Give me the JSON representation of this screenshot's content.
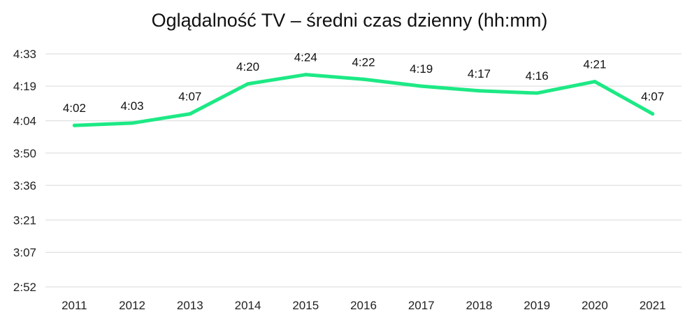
{
  "chart_data": {
    "type": "line",
    "title": "Oglądalność TV – średni czas dzienny (hh:mm)",
    "xlabel": "",
    "ylabel": "",
    "categories": [
      "2011",
      "2012",
      "2013",
      "2014",
      "2015",
      "2016",
      "2017",
      "2018",
      "2019",
      "2020",
      "2021"
    ],
    "series": [
      {
        "values_minutes": [
          242,
          243,
          247,
          260,
          264,
          262,
          259,
          257,
          256,
          261,
          247
        ],
        "data_labels": [
          "4:02",
          "4:03",
          "4:07",
          "4:20",
          "4:24",
          "4:22",
          "4:19",
          "4:17",
          "4:16",
          "4:21",
          "4:07"
        ],
        "color": "#1de985"
      }
    ],
    "y_ticks_minutes": [
      172,
      187,
      201,
      216,
      230,
      244,
      259,
      273
    ],
    "y_tick_labels": [
      "2:52",
      "3:07",
      "3:21",
      "3:36",
      "3:50",
      "4:04",
      "4:19",
      "4:33"
    ],
    "ylim_minutes": [
      172,
      273
    ],
    "grid": true,
    "gridline_color": "#d9d9d9",
    "legend": "none"
  }
}
